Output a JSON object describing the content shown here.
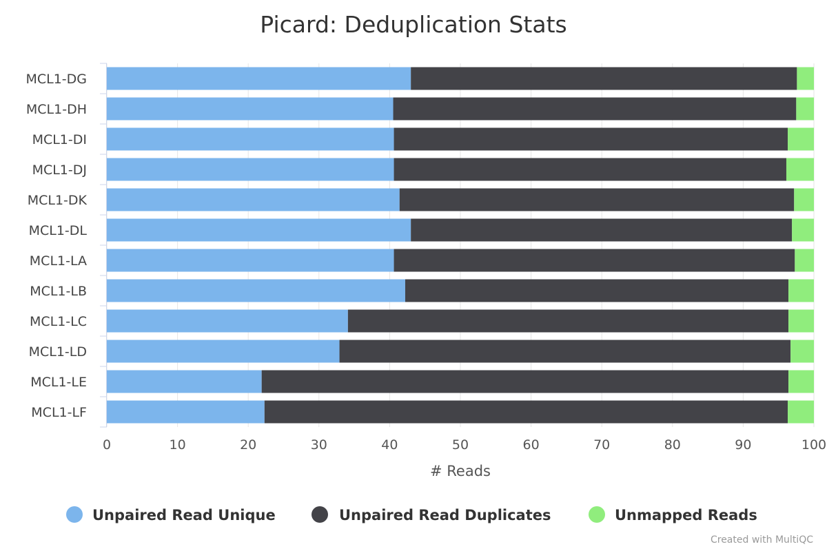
{
  "chart_data": {
    "type": "bar",
    "orientation": "horizontal",
    "stacking": "percent",
    "title": "Picard: Deduplication Stats",
    "xlabel": "# Reads",
    "ylabel": "",
    "xlim": [
      0,
      100
    ],
    "x_ticks": [
      "0",
      "10",
      "20",
      "30",
      "40",
      "50",
      "60",
      "70",
      "80",
      "90",
      "100"
    ],
    "grid": true,
    "legend_position": "bottom",
    "categories": [
      "MCL1-DG",
      "MCL1-DH",
      "MCL1-DI",
      "MCL1-DJ",
      "MCL1-DK",
      "MCL1-DL",
      "MCL1-LA",
      "MCL1-LB",
      "MCL1-LC",
      "MCL1-LD",
      "MCL1-LE",
      "MCL1-LF"
    ],
    "series": [
      {
        "name": "Unpaired Read Unique",
        "color": "#7cb5ec",
        "values": [
          43.0,
          40.5,
          40.6,
          40.6,
          41.4,
          43.0,
          40.6,
          42.2,
          34.1,
          32.9,
          21.9,
          22.3
        ]
      },
      {
        "name": "Unpaired Read Duplicates",
        "color": "#434348",
        "values": [
          54.6,
          57.0,
          55.7,
          55.5,
          55.8,
          53.9,
          56.7,
          54.2,
          62.3,
          63.8,
          74.5,
          74.0
        ]
      },
      {
        "name": "Unmapped Reads",
        "color": "#90ed7d",
        "values": [
          2.4,
          2.5,
          3.7,
          3.9,
          2.8,
          3.1,
          2.7,
          3.6,
          3.6,
          3.3,
          3.6,
          3.7
        ]
      }
    ]
  },
  "credit": "Created with MultiQC"
}
